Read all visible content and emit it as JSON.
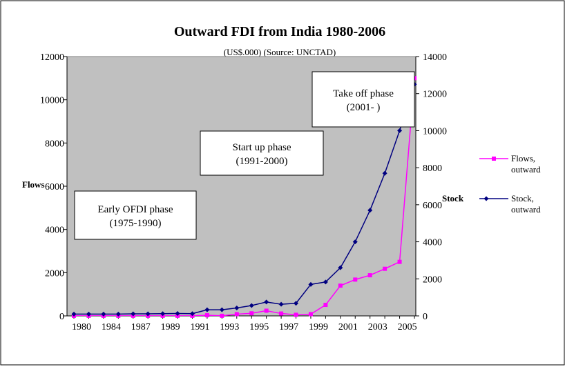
{
  "chart_data": {
    "type": "line",
    "title": "Outward FDI from India 1980-2006",
    "subtitle": "(US$.000) (Source: UNCTAD)",
    "y_label": "Flows",
    "y2_label": "Stock",
    "categories": [
      "1980",
      null,
      "1984",
      null,
      "1987",
      null,
      "1989",
      null,
      "1991",
      null,
      "1993",
      null,
      "1995",
      null,
      "1997",
      null,
      "1999",
      null,
      "2001",
      null,
      "2003",
      null,
      "2005",
      null
    ],
    "ylim": [
      0,
      12000
    ],
    "yticks": [
      0,
      2000,
      4000,
      6000,
      8000,
      10000,
      12000
    ],
    "y2lim": [
      0,
      14000
    ],
    "y2ticks": [
      0,
      2000,
      4000,
      6000,
      8000,
      10000,
      12000,
      14000
    ],
    "series": [
      {
        "name": "Flows, outward",
        "color": "#ff00ff",
        "marker": "square",
        "values": [
          5,
          5,
          5,
          5,
          5,
          5,
          5,
          5,
          5,
          30,
          5,
          80,
          120,
          240,
          110,
          50,
          80,
          510,
          1400,
          1680,
          1880,
          2180,
          2500,
          11000
        ]
      },
      {
        "name": "Stock, outward",
        "color": "#000080",
        "marker": "diamond",
        "axis": "y2",
        "values": [
          100,
          100,
          100,
          100,
          110,
          110,
          120,
          130,
          120,
          330,
          330,
          430,
          560,
          750,
          630,
          680,
          1700,
          1830,
          2600,
          4000,
          5700,
          7700,
          10000,
          12500
        ]
      }
    ],
    "annotations": [
      "Early OFDI phase\n(1975-1990)",
      "Start up phase\n(1991-2000)",
      "Take off phase\n(2001-  )"
    ],
    "plot_background": "#c0c0c0"
  }
}
